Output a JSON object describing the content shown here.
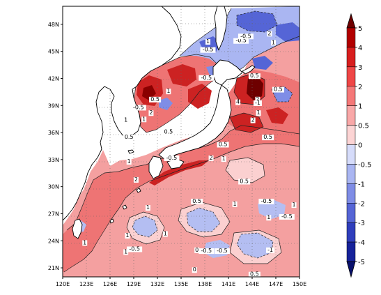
{
  "chart_data": {
    "type": "contour-map",
    "title": "",
    "xlabel": "",
    "ylabel": "",
    "x_ticks": [
      "120E",
      "123E",
      "126E",
      "129E",
      "132E",
      "135E",
      "138E",
      "141E",
      "144E",
      "147E",
      "150E"
    ],
    "y_ticks": [
      "48N",
      "45N",
      "42N",
      "39N",
      "36N",
      "33N",
      "30N",
      "27N",
      "24N",
      "21N"
    ],
    "lon_range": [
      120,
      150
    ],
    "lat_range": [
      20,
      50
    ],
    "grid": "dotted",
    "colorbar": {
      "placement": "right",
      "levels": [
        "5",
        "4",
        "3",
        "2",
        "1",
        "0.5",
        "0",
        "-0.5",
        "-1",
        "-2",
        "-3",
        "-4",
        "-5"
      ],
      "colors_warm": [
        "#6e0000",
        "#b20000",
        "#d81e1e",
        "#ef4646",
        "#f57878",
        "#f9a8a8",
        "#fcd4d4"
      ],
      "colors_cool": [
        "#d6dcfa",
        "#aab6f2",
        "#7f8de6",
        "#5565d6",
        "#2f3ebc",
        "#16229a",
        "#08106c"
      ]
    },
    "contour_labels": [
      {
        "text": "1",
        "lon": 138.4,
        "lat": 45.9
      },
      {
        "text": "-0.5",
        "lon": 138.4,
        "lat": 45.0
      },
      {
        "text": "-0.5",
        "lon": 142.6,
        "lat": 46.0
      },
      {
        "text": "-0.5",
        "lon": 143.2,
        "lat": 46.5
      },
      {
        "text": "2",
        "lon": 146.2,
        "lat": 46.8
      },
      {
        "text": "1",
        "lon": 146.7,
        "lat": 45.8
      },
      {
        "text": "-0.5",
        "lon": 138.2,
        "lat": 41.9
      },
      {
        "text": "0.5",
        "lon": 144.3,
        "lat": 42.1
      },
      {
        "text": "0.5",
        "lon": 147.3,
        "lat": 40.6
      },
      {
        "text": "0.5",
        "lon": 131.7,
        "lat": 39.5
      },
      {
        "text": "1",
        "lon": 133.4,
        "lat": 40.4
      },
      {
        "text": "2",
        "lon": 131.2,
        "lat": 38.0
      },
      {
        "text": "0.5",
        "lon": 133.4,
        "lat": 35.9
      },
      {
        "text": "1",
        "lon": 130.3,
        "lat": 37.3
      },
      {
        "text": "-0.5",
        "lon": 129.6,
        "lat": 38.6
      },
      {
        "text": "0.5",
        "lon": 128.4,
        "lat": 35.3
      },
      {
        "text": "1",
        "lon": 128.0,
        "lat": 37.2
      },
      {
        "text": "2",
        "lon": 144.7,
        "lat": 39.5
      },
      {
        "text": "4",
        "lon": 142.2,
        "lat": 39.2
      },
      {
        "text": "-1",
        "lon": 144.7,
        "lat": 39.1
      },
      {
        "text": "1",
        "lon": 144.8,
        "lat": 38.0
      },
      {
        "text": "2",
        "lon": 144.1,
        "lat": 37.2
      },
      {
        "text": "0.5",
        "lon": 146.0,
        "lat": 35.3
      },
      {
        "text": "0.5",
        "lon": 140.3,
        "lat": 34.5
      },
      {
        "text": "-0.5",
        "lon": 133.8,
        "lat": 33.0
      },
      {
        "text": "2",
        "lon": 138.8,
        "lat": 33.0
      },
      {
        "text": "1",
        "lon": 140.4,
        "lat": 32.9
      },
      {
        "text": "1",
        "lon": 128.4,
        "lat": 32.6
      },
      {
        "text": "2",
        "lon": 129.3,
        "lat": 30.6
      },
      {
        "text": "0.5",
        "lon": 137.0,
        "lat": 28.2
      },
      {
        "text": "1",
        "lon": 130.8,
        "lat": 27.5
      },
      {
        "text": "1",
        "lon": 141.8,
        "lat": 27.9
      },
      {
        "text": "-0.5",
        "lon": 145.8,
        "lat": 28.2
      },
      {
        "text": "1",
        "lon": 149.3,
        "lat": 27.8
      },
      {
        "text": "1",
        "lon": 146.1,
        "lat": 26.4
      },
      {
        "text": "-0.5",
        "lon": 148.4,
        "lat": 26.5
      },
      {
        "text": "0.5",
        "lon": 143.0,
        "lat": 30.4
      },
      {
        "text": "-0.5",
        "lon": 129.1,
        "lat": 22.9
      },
      {
        "text": "0",
        "lon": 137.0,
        "lat": 22.8
      },
      {
        "text": "-0.5",
        "lon": 138.2,
        "lat": 22.7
      },
      {
        "text": "-0.5",
        "lon": 140.2,
        "lat": 22.7
      },
      {
        "text": "1",
        "lon": 128.0,
        "lat": 22.6
      },
      {
        "text": "1",
        "lon": 122.8,
        "lat": 23.6
      },
      {
        "text": "1",
        "lon": 128.2,
        "lat": 24.4
      },
      {
        "text": "1",
        "lon": 133.0,
        "lat": 24.6
      },
      {
        "text": "0",
        "lon": 136.7,
        "lat": 20.6
      },
      {
        "text": "0.5",
        "lon": 144.3,
        "lat": 20.1
      },
      {
        "text": "-1",
        "lon": 146.3,
        "lat": 22.8
      }
    ]
  }
}
